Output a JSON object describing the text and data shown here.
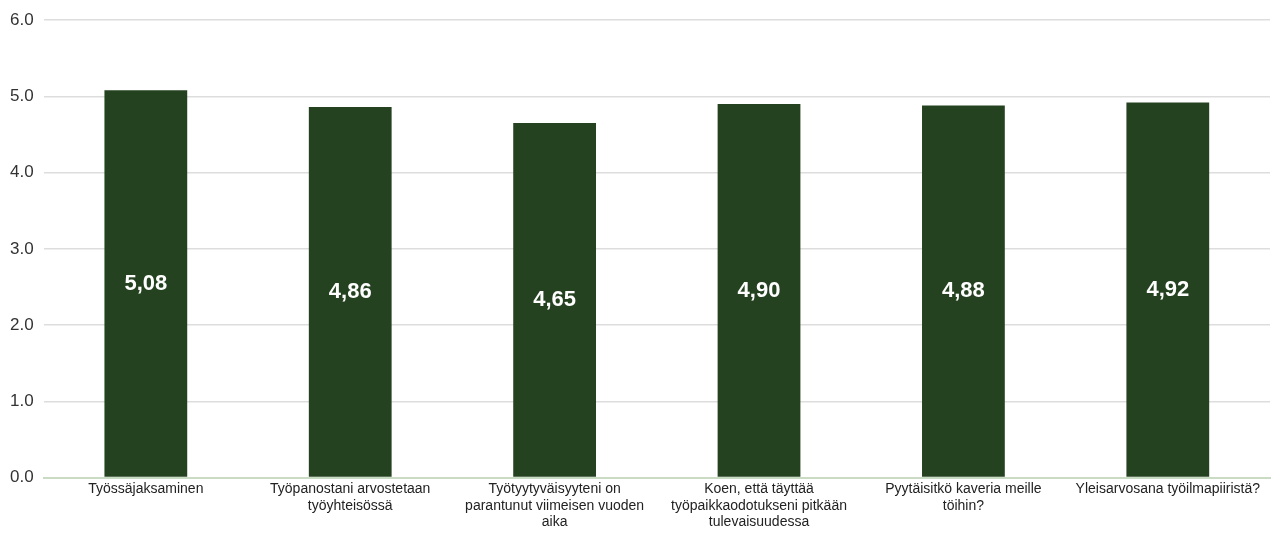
{
  "chart_data": {
    "type": "bar",
    "categories": [
      "Työssäjaksaminen",
      "Työpanostani arvostetaan työyhteisössä",
      "Työtyytyväisyyteni on parantunut viimeisen vuoden aika",
      "Koen, että täyttää työpaikkaodotukseni pitkään tulevaisuudessa",
      "Pyytäisitkö kaveria meille töihin?",
      "Yleisarvosana työilmapiiristä?"
    ],
    "values": [
      5.08,
      4.86,
      4.65,
      4.9,
      4.88,
      4.92
    ],
    "value_labels": [
      "5,08",
      "4,86",
      "4,65",
      "4,90",
      "4,88",
      "4,92"
    ],
    "color": "#254220",
    "ylim": [
      0,
      6
    ],
    "yticks": [
      {
        "value": 0,
        "label": "0.0"
      },
      {
        "value": 1,
        "label": "1.0"
      },
      {
        "value": 2,
        "label": "2.0"
      },
      {
        "value": 3,
        "label": "3.0"
      },
      {
        "value": 4,
        "label": "4.0"
      },
      {
        "value": 5,
        "label": "5.0"
      },
      {
        "value": 6,
        "label": "6.0"
      }
    ],
    "grid": "y",
    "legend": false
  }
}
